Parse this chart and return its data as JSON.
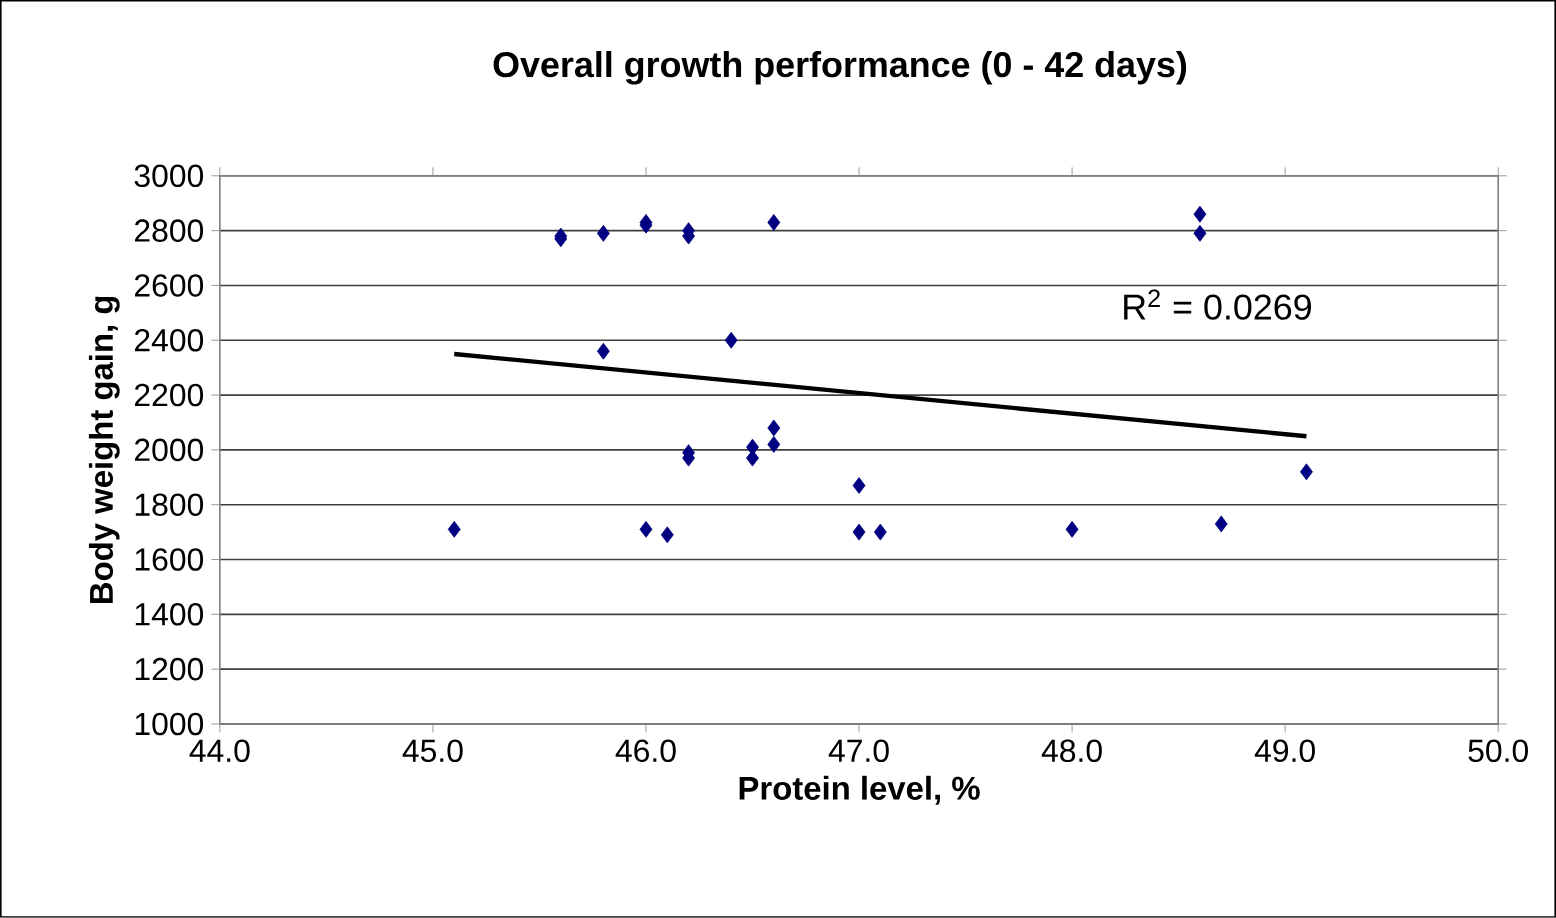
{
  "chart_data": {
    "type": "scatter",
    "title": "Overall growth performance (0 - 42 days)",
    "xlabel": "Protein level, %",
    "ylabel": "Body weight gain, g",
    "xlim": [
      44,
      50
    ],
    "ylim": [
      1000,
      3000
    ],
    "xticks": [
      {
        "value": 44,
        "label": "44.0"
      },
      {
        "value": 45,
        "label": "45.0"
      },
      {
        "value": 46,
        "label": "46.0"
      },
      {
        "value": 47,
        "label": "47.0"
      },
      {
        "value": 48,
        "label": "48.0"
      },
      {
        "value": 49,
        "label": "49.0"
      },
      {
        "value": 50,
        "label": "50.0"
      }
    ],
    "yticks": [
      1000,
      1200,
      1400,
      1600,
      1800,
      2000,
      2200,
      2400,
      2600,
      2800,
      3000
    ],
    "grid": "y",
    "series": [
      {
        "color": "#000080",
        "marker": "diamond",
        "x": [
          45.1,
          45.6,
          45.6,
          45.8,
          45.8,
          46.0,
          46.0,
          46.0,
          46.1,
          46.2,
          46.2,
          46.2,
          46.2,
          46.4,
          46.5,
          46.5,
          46.6,
          46.6,
          46.6,
          47.0,
          47.0,
          47.1,
          48.0,
          48.6,
          48.6,
          48.7,
          49.1
        ],
        "values": [
          1710,
          2770,
          2780,
          2790,
          2360,
          2820,
          2830,
          1710,
          1690,
          2800,
          2780,
          1990,
          1970,
          2400,
          2010,
          1970,
          2830,
          2080,
          2020,
          1870,
          1700,
          1700,
          1710,
          2860,
          2790,
          1730,
          1920
        ]
      },
      {
        "type": "line",
        "color": "#000000",
        "x": [
          45.1,
          49.1
        ],
        "values": [
          2350,
          2050
        ]
      }
    ],
    "annotations": [
      "R$^{2}$ = 0.0269"
    ]
  }
}
